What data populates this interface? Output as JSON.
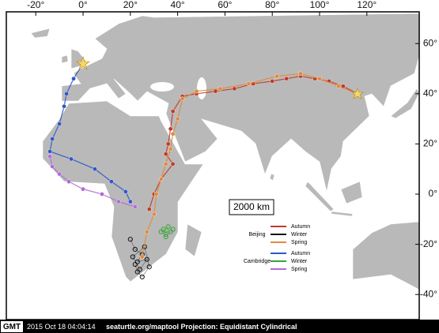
{
  "map": {
    "lon_ticks": [
      {
        "value": -20,
        "label": "-20°"
      },
      {
        "value": 0,
        "label": "0°"
      },
      {
        "value": 20,
        "label": "20°"
      },
      {
        "value": 40,
        "label": "40°"
      },
      {
        "value": 60,
        "label": "60°"
      },
      {
        "value": 80,
        "label": "80°"
      },
      {
        "value": 100,
        "label": "100°"
      },
      {
        "value": 120,
        "label": "120°"
      }
    ],
    "lat_ticks": [
      {
        "value": 60,
        "label": "60°"
      },
      {
        "value": 40,
        "label": "40°"
      },
      {
        "value": 20,
        "label": "20°"
      },
      {
        "value": 0,
        "label": "0°"
      },
      {
        "value": -20,
        "label": "-20°"
      },
      {
        "value": -40,
        "label": "-40°"
      }
    ],
    "scale_bar": "2000 km",
    "legend": [
      {
        "name": "Beijing",
        "entries": [
          {
            "label": "Autumn",
            "color": "#c0392b",
            "lon": [
              116,
              110,
              104,
              98,
              92,
              86,
              80,
              72,
              64,
              56,
              48,
              42,
              38,
              37,
              36,
              35,
              38,
              33,
              30,
              28
            ],
            "lat": [
              40,
              43,
              45,
              46,
              47,
              46,
              45,
              44,
              42,
              41,
              40,
              39,
              33,
              26,
              20,
              16,
              12,
              6,
              0,
              -6
            ]
          },
          {
            "label": "Winter",
            "color": "#111111",
            "lon": [
              20,
              22,
              25,
              23,
              27,
              24,
              21,
              26,
              28,
              25,
              23,
              22
            ],
            "lat": [
              -18,
              -22,
              -24,
              -27,
              -26,
              -30,
              -25,
              -21,
              -29,
              -33,
              -31,
              -28
            ]
          },
          {
            "label": "Spring",
            "color": "#e08a3c",
            "lon": [
              25,
              27,
              30,
              31,
              33,
              35,
              37,
              38,
              40,
              42,
              48,
              58,
              70,
              82,
              92,
              100,
              108,
              116
            ],
            "lat": [
              -25,
              -15,
              -8,
              0,
              6,
              12,
              18,
              24,
              30,
              38,
              41,
              42,
              44,
              47,
              48,
              46,
              43,
              40
            ]
          }
        ]
      },
      {
        "name": "Cambridge",
        "entries": [
          {
            "label": "Autumn",
            "color": "#2f56c8",
            "lon": [
              0,
              -4,
              -7,
              -8,
              -10,
              -13,
              -14,
              -5,
              5,
              12,
              18,
              20
            ],
            "lat": [
              52,
              46,
              40,
              35,
              28,
              22,
              17,
              14,
              10,
              5,
              1,
              -3
            ]
          },
          {
            "label": "Winter",
            "color": "#3aa33a",
            "lon": [
              34,
              35,
              36,
              33,
              37,
              35,
              38
            ],
            "lat": [
              -14,
              -16,
              -13,
              -15,
              -15,
              -17,
              -14
            ]
          },
          {
            "label": "Spring",
            "color": "#b36ad6",
            "lon": [
              22,
              15,
              8,
              0,
              -6,
              -10,
              -13,
              -14
            ],
            "lat": [
              -5,
              -3,
              0,
              2,
              5,
              8,
              11,
              15
            ]
          }
        ]
      }
    ]
  },
  "footer": {
    "badge": "GMT",
    "timestamp": "2015 Oct 18 04:04:14",
    "source": "seaturtle.org/maptool Projection: Equidistant Cylindrical"
  }
}
